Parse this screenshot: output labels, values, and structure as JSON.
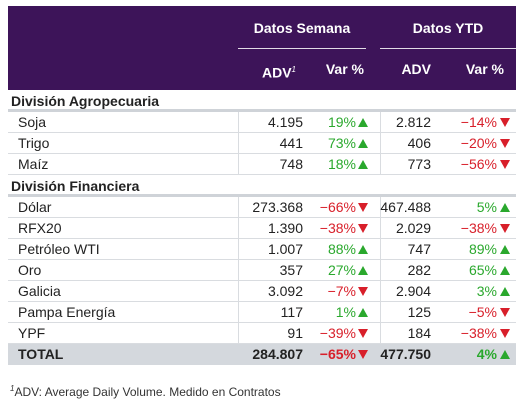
{
  "header": {
    "group_week": "Datos Semana",
    "group_ytd": "Datos YTD",
    "col_adv": "ADV",
    "col_adv_sup": "1",
    "col_var": "Var %",
    "col_adv_ytd": "ADV",
    "col_var_ytd": "Var %"
  },
  "sections": [
    {
      "title": "División Agropecuaria",
      "rows": [
        {
          "name": "Soja",
          "week_adv": "4.195",
          "week_var": "19%",
          "week_dir": "up",
          "ytd_adv": "2.812",
          "ytd_var": "−14%",
          "ytd_dir": "down"
        },
        {
          "name": "Trigo",
          "week_adv": "441",
          "week_var": "73%",
          "week_dir": "up",
          "ytd_adv": "406",
          "ytd_var": "−20%",
          "ytd_dir": "down"
        },
        {
          "name": "Maíz",
          "week_adv": "748",
          "week_var": "18%",
          "week_dir": "up",
          "ytd_adv": "773",
          "ytd_var": "−56%",
          "ytd_dir": "down"
        }
      ]
    },
    {
      "title": "División Financiera",
      "rows": [
        {
          "name": "Dólar",
          "week_adv": "273.368",
          "week_var": "−66%",
          "week_dir": "down",
          "ytd_adv": "467.488",
          "ytd_var": "5%",
          "ytd_dir": "up"
        },
        {
          "name": "RFX20",
          "week_adv": "1.390",
          "week_var": "−38%",
          "week_dir": "down",
          "ytd_adv": "2.029",
          "ytd_var": "−38%",
          "ytd_dir": "down"
        },
        {
          "name": "Petróleo WTI",
          "week_adv": "1.007",
          "week_var": "88%",
          "week_dir": "up",
          "ytd_adv": "747",
          "ytd_var": "89%",
          "ytd_dir": "up"
        },
        {
          "name": "Oro",
          "week_adv": "357",
          "week_var": "27%",
          "week_dir": "up",
          "ytd_adv": "282",
          "ytd_var": "65%",
          "ytd_dir": "up"
        },
        {
          "name": "Galicia",
          "week_adv": "3.092",
          "week_var": "−7%",
          "week_dir": "down",
          "ytd_adv": "2.904",
          "ytd_var": "3%",
          "ytd_dir": "up"
        },
        {
          "name": "Pampa Energía",
          "week_adv": "117",
          "week_var": "1%",
          "week_dir": "up",
          "ytd_adv": "125",
          "ytd_var": "−5%",
          "ytd_dir": "down"
        },
        {
          "name": "YPF",
          "week_adv": "91",
          "week_var": "−39%",
          "week_dir": "down",
          "ytd_adv": "184",
          "ytd_var": "−38%",
          "ytd_dir": "down"
        }
      ]
    }
  ],
  "total": {
    "name": "TOTAL",
    "week_adv": "284.807",
    "week_var": "−65%",
    "week_dir": "down",
    "ytd_adv": "477.750",
    "ytd_var": "4%",
    "ytd_dir": "up"
  },
  "footnote": {
    "sup": "1",
    "text": "ADV: Average Daily Volume. Medido en Contratos"
  },
  "colors": {
    "header_bg": "#3d1459",
    "up": "#2aa82d",
    "down": "#d81f2a",
    "total_bg": "#d4d8dd"
  }
}
